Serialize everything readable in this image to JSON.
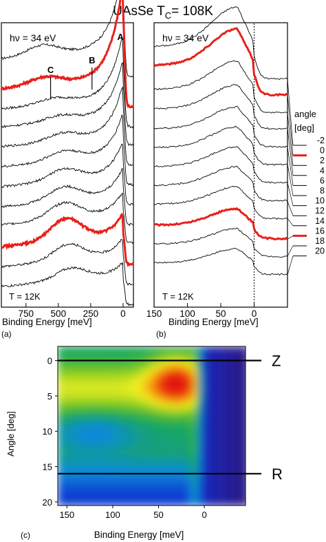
{
  "title": "UAsSe T",
  "title_sub": "C",
  "title_tail": "= 108K",
  "chart_data": [
    {
      "panel": "(a)",
      "type": "line",
      "annotation": "hν = 34 eV",
      "temperature": "T = 12K",
      "xlabel": "Binding Energy [meV]",
      "xticks": [
        "750",
        "500",
        "250",
        "0"
      ],
      "xlim": [
        940,
        -80
      ],
      "peak_labels": [
        {
          "label": "A",
          "x": 20
        },
        {
          "label": "B",
          "x": 240
        },
        {
          "label": "C",
          "x": 560
        }
      ],
      "highlight_color": "#e8201b",
      "series": [
        {
          "angle": -2,
          "offset": 12.4,
          "peak": 3.6,
          "hump": 0.5,
          "hump_x": 620,
          "highlight": false
        },
        {
          "angle": 0,
          "offset": 10.9,
          "peak": 4.4,
          "hump": 0.4,
          "hump_x": 600,
          "highlight": true
        },
        {
          "angle": 2,
          "offset": 9.9,
          "peak": 3.0,
          "hump": 0.3,
          "hump_x": 520,
          "highlight": false
        },
        {
          "angle": 4,
          "offset": 9.0,
          "peak": 2.6,
          "hump": 0.3,
          "hump_x": 480,
          "highlight": false
        },
        {
          "angle": 6,
          "offset": 8.0,
          "peak": 2.4,
          "hump": 0.4,
          "hump_x": 460,
          "highlight": false
        },
        {
          "angle": 8,
          "offset": 7.0,
          "peak": 2.0,
          "hump": 0.5,
          "hump_x": 450,
          "highlight": false
        },
        {
          "angle": 10,
          "offset": 6.0,
          "peak": 1.6,
          "hump": 0.6,
          "hump_x": 450,
          "highlight": false
        },
        {
          "angle": 12,
          "offset": 5.0,
          "peak": 1.3,
          "hump": 0.7,
          "hump_x": 450,
          "highlight": false
        },
        {
          "angle": 14,
          "offset": 4.1,
          "peak": 1.0,
          "hump": 0.8,
          "hump_x": 450,
          "highlight": false
        },
        {
          "angle": 16,
          "offset": 3.0,
          "peak": 1.0,
          "hump": 1.1,
          "hump_x": 440,
          "highlight": true
        },
        {
          "angle": 18,
          "offset": 2.0,
          "peak": 0.8,
          "hump": 0.8,
          "hump_x": 420,
          "highlight": false
        },
        {
          "angle": 20,
          "offset": 1.0,
          "peak": 0.6,
          "hump": 0.6,
          "hump_x": 400,
          "highlight": false
        }
      ]
    },
    {
      "panel": "(b)",
      "type": "line",
      "annotation": "hν = 34 eV",
      "temperature": "T = 12K",
      "xlabel": "Binding Energy [meV]",
      "xticks": [
        "150",
        "100",
        "50",
        "0"
      ],
      "xlim": [
        150,
        -50
      ],
      "fermi_line_x": 0,
      "legend_title": [
        "angle",
        "[deg]"
      ],
      "legend_position": "right",
      "highlight_color": "#e8201b",
      "series": [
        {
          "angle": -2,
          "offset": 11.4,
          "peak": 3.6,
          "highlight": false
        },
        {
          "angle": 0,
          "offset": 10.6,
          "peak": 3.3,
          "highlight": true
        },
        {
          "angle": 2,
          "offset": 9.7,
          "peak": 2.6,
          "highlight": false
        },
        {
          "angle": 4,
          "offset": 8.9,
          "peak": 2.2,
          "highlight": false
        },
        {
          "angle": 6,
          "offset": 8.0,
          "peak": 2.0,
          "highlight": false
        },
        {
          "angle": 8,
          "offset": 7.1,
          "peak": 1.9,
          "highlight": false
        },
        {
          "angle": 10,
          "offset": 6.2,
          "peak": 1.8,
          "highlight": false
        },
        {
          "angle": 12,
          "offset": 5.3,
          "peak": 1.7,
          "highlight": false
        },
        {
          "angle": 14,
          "offset": 4.4,
          "peak": 1.6,
          "highlight": false
        },
        {
          "angle": 16,
          "offset": 3.4,
          "peak": 1.5,
          "highlight": true
        },
        {
          "angle": 18,
          "offset": 2.5,
          "peak": 1.4,
          "highlight": false
        },
        {
          "angle": 20,
          "offset": 1.6,
          "peak": 1.3,
          "highlight": false
        }
      ]
    },
    {
      "panel": "(c)",
      "type": "heatmap",
      "xlabel": "Binding Energy [meV]",
      "ylabel": "Angle [deg]",
      "xticks": [
        150,
        100,
        50,
        0
      ],
      "yticks": [
        0,
        5,
        10,
        15,
        20
      ],
      "xlim": [
        160,
        -45
      ],
      "ylim": [
        -2,
        20.5
      ],
      "colormap": [
        "#2b1a8a",
        "#0b2fd0",
        "#0a8bd8",
        "#18a85a",
        "#7cc820",
        "#f2f020",
        "#f5a010",
        "#ee3a10",
        "#e01010"
      ],
      "cuts": [
        {
          "label": "Z",
          "angle": 0
        },
        {
          "label": "R",
          "angle": 16
        }
      ]
    }
  ]
}
